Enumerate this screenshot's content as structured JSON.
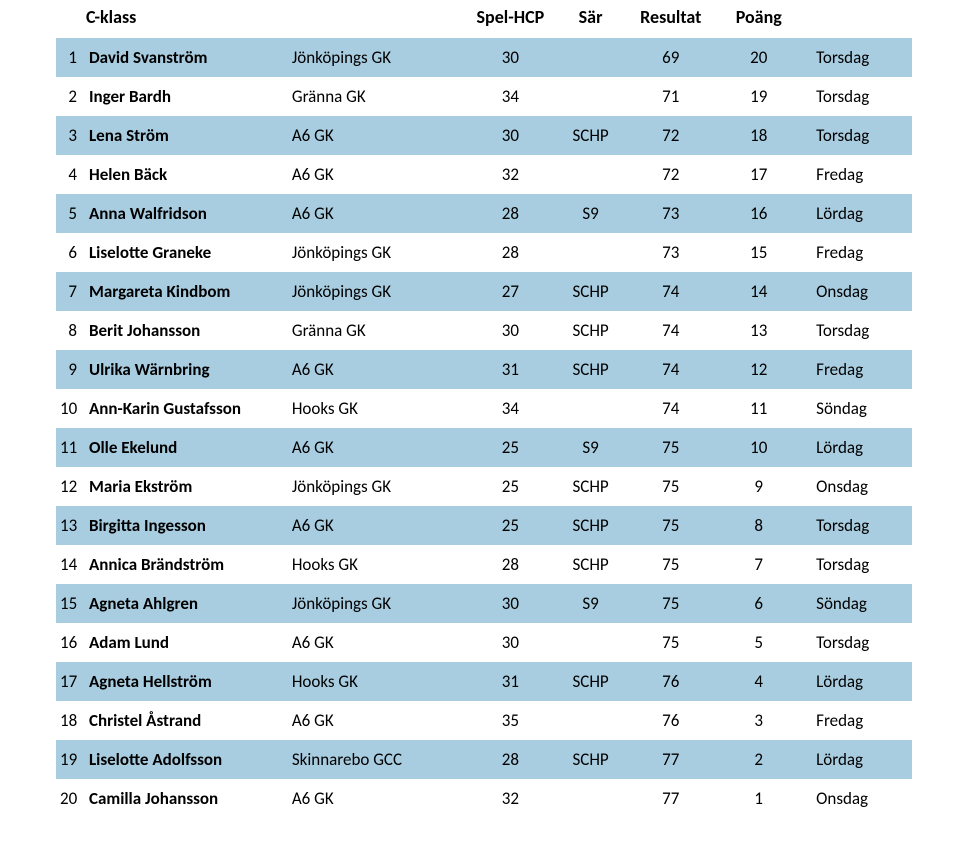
{
  "table": {
    "header": {
      "klass": "C-klass",
      "spel_hcp": "Spel-HCP",
      "sar": "Sär",
      "resultat": "Resultat",
      "poang": "Poäng"
    },
    "stripe_color": "#a8cde0",
    "plain_color": "#ffffff",
    "text_color": "#000000",
    "font_family": "Calibri",
    "header_fontsize": 18,
    "body_fontsize": 17,
    "rows": [
      {
        "rank": 1,
        "name": "David Svanström",
        "club": "Jönköpings GK",
        "hcp": 30,
        "sar": "",
        "res": 69,
        "pts": 20,
        "day": "Torsdag"
      },
      {
        "rank": 2,
        "name": "Inger Bardh",
        "club": "Gränna GK",
        "hcp": 34,
        "sar": "",
        "res": 71,
        "pts": 19,
        "day": "Torsdag"
      },
      {
        "rank": 3,
        "name": "Lena Ström",
        "club": "A6 GK",
        "hcp": 30,
        "sar": "SCHP",
        "res": 72,
        "pts": 18,
        "day": "Torsdag"
      },
      {
        "rank": 4,
        "name": "Helen Bäck",
        "club": "A6 GK",
        "hcp": 32,
        "sar": "",
        "res": 72,
        "pts": 17,
        "day": "Fredag"
      },
      {
        "rank": 5,
        "name": "Anna Walfridson",
        "club": "A6 GK",
        "hcp": 28,
        "sar": "S9",
        "res": 73,
        "pts": 16,
        "day": "Lördag"
      },
      {
        "rank": 6,
        "name": "Liselotte Graneke",
        "club": "Jönköpings GK",
        "hcp": 28,
        "sar": "",
        "res": 73,
        "pts": 15,
        "day": "Fredag"
      },
      {
        "rank": 7,
        "name": "Margareta Kindbom",
        "club": "Jönköpings GK",
        "hcp": 27,
        "sar": "SCHP",
        "res": 74,
        "pts": 14,
        "day": "Onsdag"
      },
      {
        "rank": 8,
        "name": "Berit Johansson",
        "club": "Gränna GK",
        "hcp": 30,
        "sar": "SCHP",
        "res": 74,
        "pts": 13,
        "day": "Torsdag"
      },
      {
        "rank": 9,
        "name": "Ulrika Wärnbring",
        "club": "A6 GK",
        "hcp": 31,
        "sar": "SCHP",
        "res": 74,
        "pts": 12,
        "day": "Fredag"
      },
      {
        "rank": 10,
        "name": "Ann-Karin Gustafsson",
        "club": "Hooks GK",
        "hcp": 34,
        "sar": "",
        "res": 74,
        "pts": 11,
        "day": "Söndag"
      },
      {
        "rank": 11,
        "name": "Olle Ekelund",
        "club": "A6 GK",
        "hcp": 25,
        "sar": "S9",
        "res": 75,
        "pts": 10,
        "day": "Lördag"
      },
      {
        "rank": 12,
        "name": "Maria Ekström",
        "club": "Jönköpings GK",
        "hcp": 25,
        "sar": "SCHP",
        "res": 75,
        "pts": 9,
        "day": "Onsdag"
      },
      {
        "rank": 13,
        "name": "Birgitta Ingesson",
        "club": "A6 GK",
        "hcp": 25,
        "sar": "SCHP",
        "res": 75,
        "pts": 8,
        "day": "Torsdag"
      },
      {
        "rank": 14,
        "name": "Annica Brändström",
        "club": "Hooks GK",
        "hcp": 28,
        "sar": "SCHP",
        "res": 75,
        "pts": 7,
        "day": "Torsdag"
      },
      {
        "rank": 15,
        "name": "Agneta Ahlgren",
        "club": "Jönköpings GK",
        "hcp": 30,
        "sar": "S9",
        "res": 75,
        "pts": 6,
        "day": "Söndag"
      },
      {
        "rank": 16,
        "name": "Adam Lund",
        "club": "A6 GK",
        "hcp": 30,
        "sar": "",
        "res": 75,
        "pts": 5,
        "day": "Torsdag"
      },
      {
        "rank": 17,
        "name": "Agneta Hellström",
        "club": "Hooks GK",
        "hcp": 31,
        "sar": "SCHP",
        "res": 76,
        "pts": 4,
        "day": "Lördag"
      },
      {
        "rank": 18,
        "name": "Christel Åstrand",
        "club": "A6 GK",
        "hcp": 35,
        "sar": "",
        "res": 76,
        "pts": 3,
        "day": "Fredag"
      },
      {
        "rank": 19,
        "name": "Liselotte Adolfsson",
        "club": "Skinnarebo GCC",
        "hcp": 28,
        "sar": "SCHP",
        "res": 77,
        "pts": 2,
        "day": "Lördag"
      },
      {
        "rank": 20,
        "name": "Camilla Johansson",
        "club": "A6 GK",
        "hcp": 32,
        "sar": "",
        "res": 77,
        "pts": 1,
        "day": "Onsdag"
      }
    ]
  }
}
